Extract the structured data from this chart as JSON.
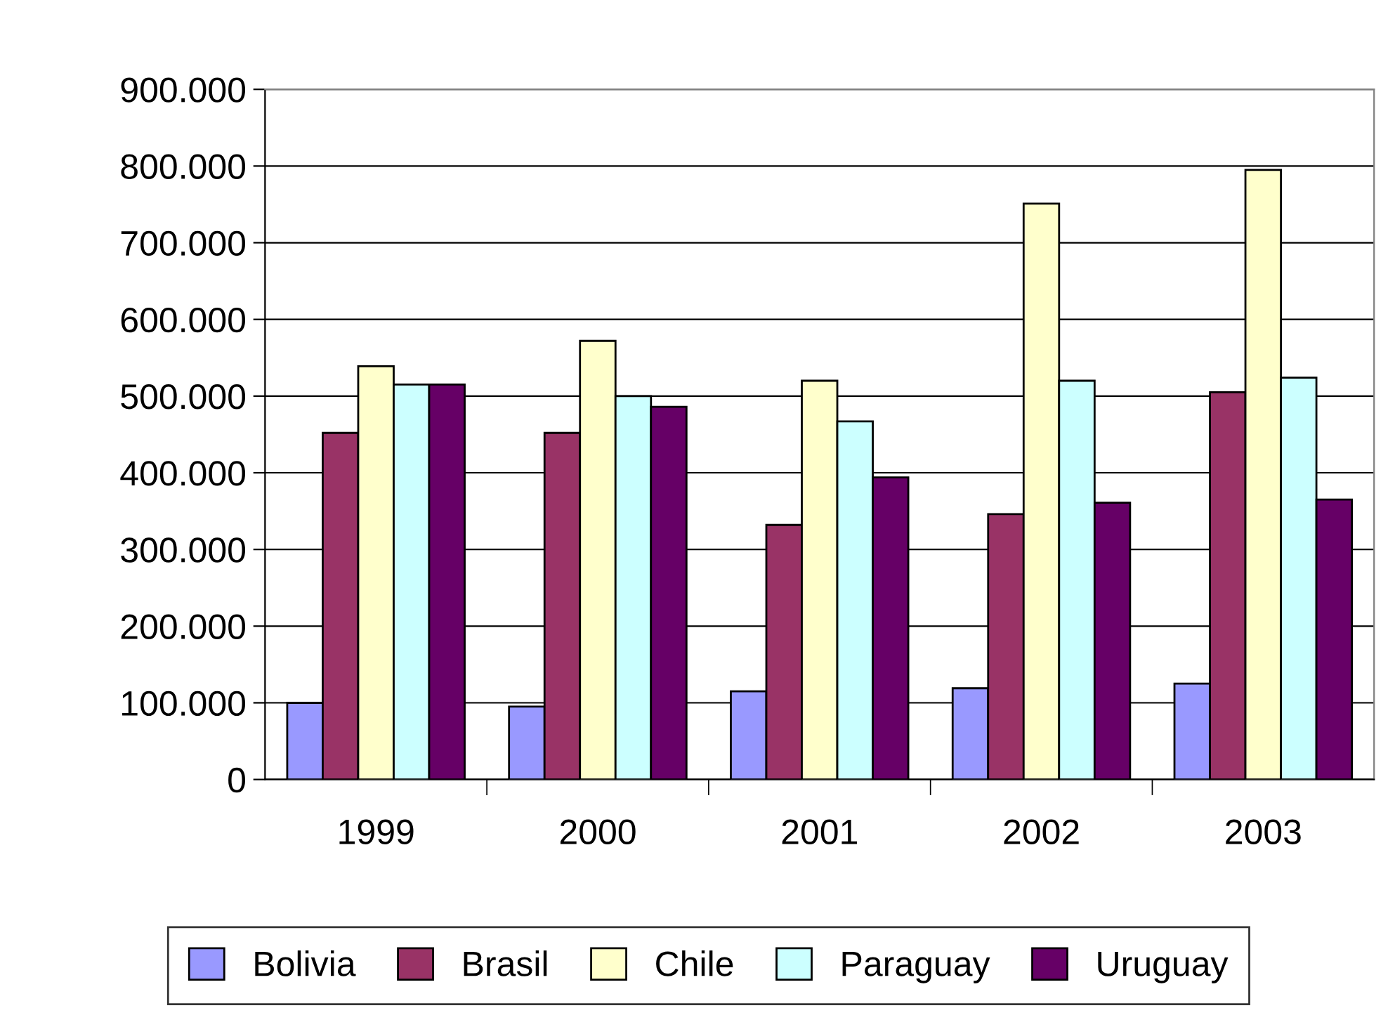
{
  "chart_data": {
    "type": "bar",
    "categories": [
      "1999",
      "2000",
      "2001",
      "2002",
      "2003"
    ],
    "series": [
      {
        "name": "Bolivia",
        "color": "#9999ff",
        "values": [
          100000,
          95000,
          115000,
          119000,
          125000
        ]
      },
      {
        "name": "Brasil",
        "color": "#993366",
        "values": [
          452000,
          452000,
          332000,
          346000,
          505000
        ]
      },
      {
        "name": "Chile",
        "color": "#ffffcc",
        "values": [
          539000,
          572000,
          520000,
          751000,
          795000
        ]
      },
      {
        "name": "Paraguay",
        "color": "#ccffff",
        "values": [
          515000,
          500000,
          467000,
          520000,
          524000
        ]
      },
      {
        "name": "Uruguay",
        "color": "#660066",
        "values": [
          515000,
          486000,
          394000,
          361000,
          365000
        ]
      }
    ],
    "ylim": [
      0,
      900000
    ],
    "yticks": [
      0,
      {
        "value": 100000,
        "label": "100.000"
      },
      {
        "value": 200000,
        "label": "200.000"
      },
      {
        "value": 300000,
        "label": "300.000"
      },
      {
        "value": 400000,
        "label": "400.000"
      },
      {
        "value": 500000,
        "label": "500.000"
      },
      {
        "value": 600000,
        "label": "600.000"
      },
      {
        "value": 700000,
        "label": "700.000"
      },
      {
        "value": 800000,
        "label": "800.000"
      },
      {
        "value": 900000,
        "label": "900.000"
      }
    ],
    "grid": "y",
    "legend": "bottom"
  }
}
